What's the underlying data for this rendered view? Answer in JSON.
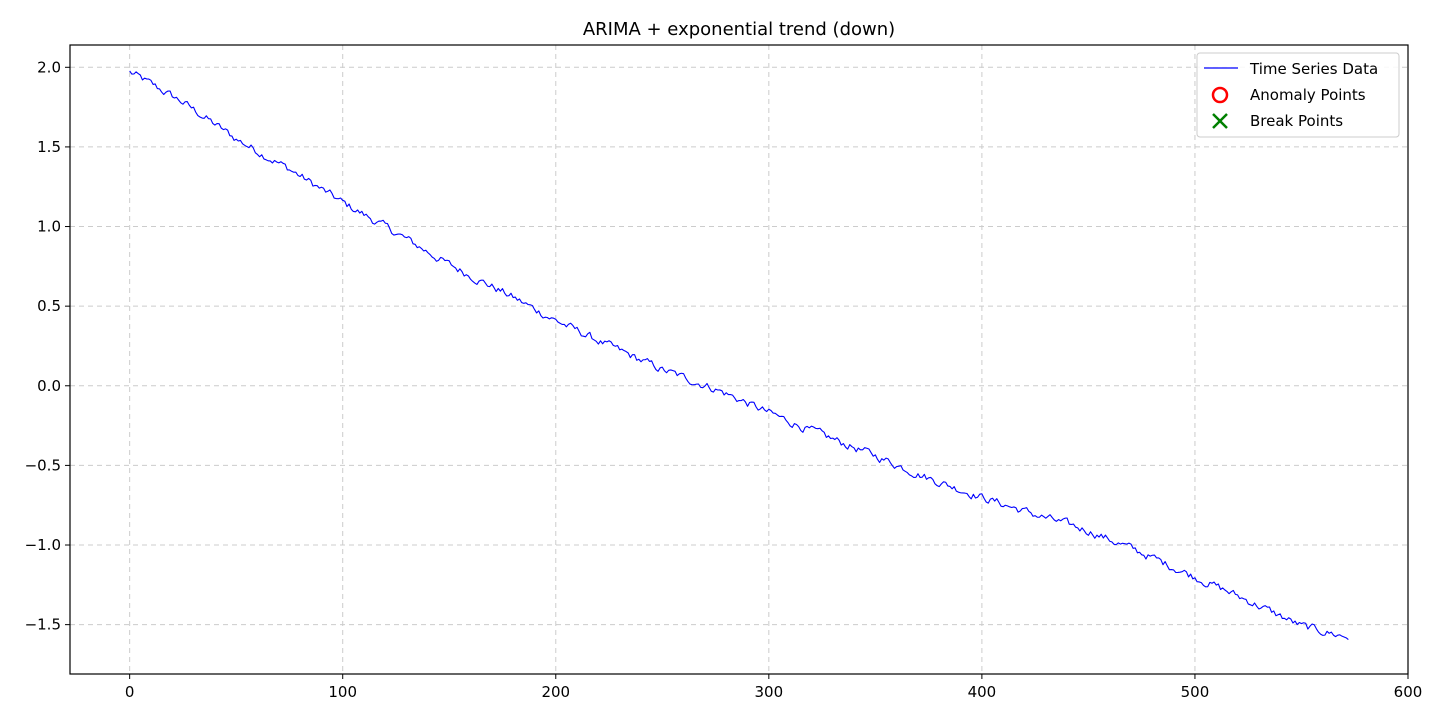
{
  "chart_data": {
    "type": "line",
    "title": "ARIMA + exponential trend (down)",
    "xlabel": "",
    "ylabel": "",
    "xlim": [
      -28,
      600
    ],
    "ylim": [
      -1.81,
      2.14
    ],
    "x_ticks": [
      0,
      100,
      200,
      300,
      400,
      500,
      600
    ],
    "x_tick_labels": [
      "0",
      "100",
      "200",
      "300",
      "400",
      "500",
      "600"
    ],
    "y_ticks": [
      2.0,
      1.5,
      1.0,
      0.5,
      0.0,
      -0.5,
      -1.0,
      -1.5
    ],
    "y_tick_labels": [
      "2.0",
      "1.5",
      "1.0",
      "0.5",
      "0.0",
      "−0.5",
      "−1.0",
      "−1.5"
    ],
    "grid": true,
    "legend_position": "top-right",
    "series": [
      {
        "name": "Time Series Data",
        "color": "#0000ff",
        "x_start": 0,
        "x_end": 572,
        "anchors": [
          [
            0,
            1.97
          ],
          [
            25,
            1.78
          ],
          [
            50,
            1.55
          ],
          [
            75,
            1.36
          ],
          [
            100,
            1.15
          ],
          [
            125,
            0.96
          ],
          [
            150,
            0.76
          ],
          [
            175,
            0.59
          ],
          [
            200,
            0.41
          ],
          [
            225,
            0.25
          ],
          [
            250,
            0.1
          ],
          [
            275,
            -0.02
          ],
          [
            300,
            -0.17
          ],
          [
            325,
            -0.31
          ],
          [
            350,
            -0.44
          ],
          [
            375,
            -0.58
          ],
          [
            400,
            -0.7
          ],
          [
            425,
            -0.81
          ],
          [
            450,
            -0.91
          ],
          [
            475,
            -1.05
          ],
          [
            500,
            -1.2
          ],
          [
            525,
            -1.35
          ],
          [
            550,
            -1.51
          ],
          [
            572,
            -1.58
          ]
        ]
      }
    ],
    "legend": [
      {
        "label": "Time Series Data",
        "marker": "line",
        "color": "#0000ff"
      },
      {
        "label": "Anomaly Points",
        "marker": "circle",
        "color": "#ff0000"
      },
      {
        "label": "Break Points",
        "marker": "x",
        "color": "#008000"
      }
    ]
  }
}
